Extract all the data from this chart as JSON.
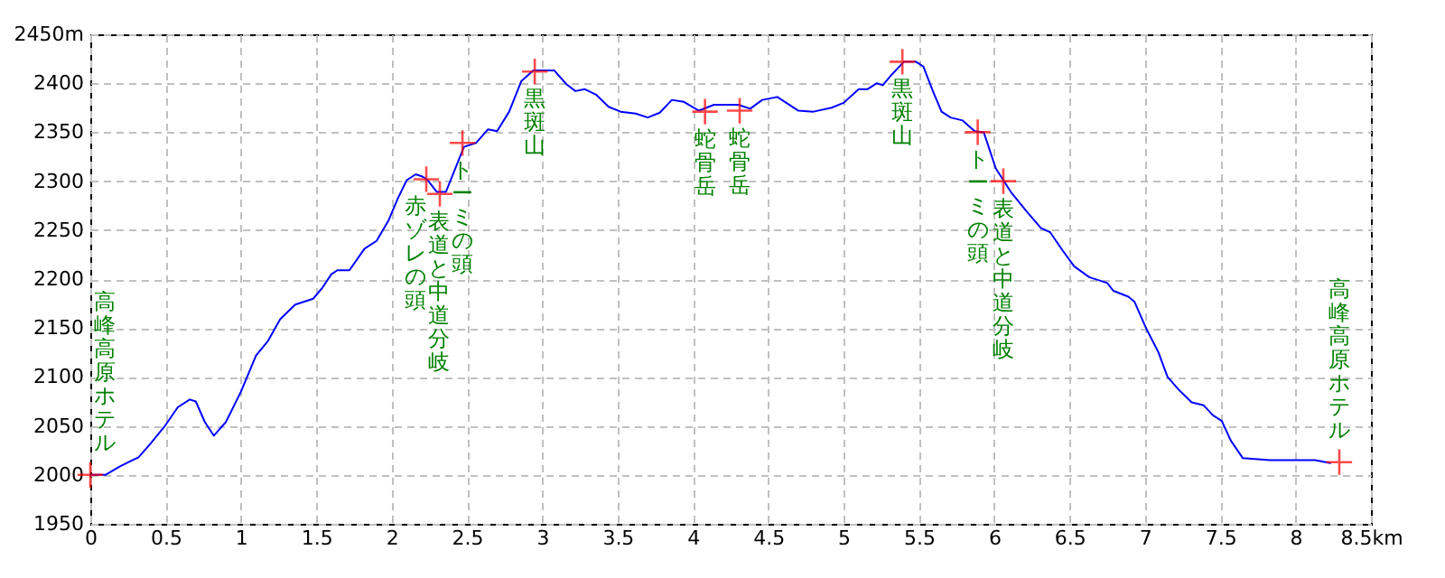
{
  "chart_data": {
    "type": "line",
    "xlim": [
      0,
      8.5
    ],
    "ylim": [
      1950,
      2450
    ],
    "xticks": [
      0,
      0.5,
      1,
      1.5,
      2,
      2.5,
      3,
      3.5,
      4,
      4.5,
      5,
      5.5,
      6,
      6.5,
      7,
      7.5,
      8,
      {
        "value": 8.5,
        "label": "8.5km"
      }
    ],
    "yticks": [
      1950,
      2000,
      2050,
      2100,
      2150,
      2200,
      2250,
      2300,
      2350,
      2400,
      {
        "value": 2450,
        "label": "2450m"
      }
    ],
    "grid": true,
    "series": [
      {
        "color": "#0000ff",
        "x": [
          0,
          0.1,
          0.2,
          0.32,
          0.4,
          0.5,
          0.58,
          0.66,
          0.7,
          0.76,
          0.82,
          0.9,
          1.0,
          1.1,
          1.18,
          1.26,
          1.36,
          1.48,
          1.54,
          1.6,
          1.64,
          1.72,
          1.82,
          1.9,
          1.98,
          2.04,
          2.1,
          2.16,
          2.2,
          2.24,
          2.3,
          2.36,
          2.48,
          2.56,
          2.64,
          2.7,
          2.78,
          2.86,
          2.94,
          3.08,
          3.16,
          3.22,
          3.28,
          3.36,
          3.44,
          3.52,
          3.62,
          3.7,
          3.78,
          3.86,
          3.94,
          4.04,
          4.14,
          4.3,
          4.38,
          4.46,
          4.56,
          4.7,
          4.8,
          4.92,
          5.0,
          5.1,
          5.16,
          5.22,
          5.26,
          5.32,
          5.4,
          5.48,
          5.53,
          5.59,
          5.65,
          5.71,
          5.79,
          5.87,
          5.93,
          6.01,
          6.11,
          6.21,
          6.31,
          6.37,
          6.45,
          6.53,
          6.63,
          6.75,
          6.79,
          6.89,
          6.93,
          7.01,
          7.09,
          7.15,
          7.23,
          7.31,
          7.39,
          7.45,
          7.51,
          7.57,
          7.65,
          7.83,
          8.13,
          8.23
        ],
        "values": [
          2000,
          2000,
          2009,
          2018,
          2032,
          2051,
          2069,
          2077,
          2075,
          2054,
          2040,
          2054,
          2085,
          2122,
          2137,
          2159,
          2174,
          2180,
          2191,
          2205,
          2209,
          2209,
          2231,
          2239,
          2260,
          2282,
          2301,
          2307,
          2305,
          2301,
          2289,
          2289,
          2335,
          2339,
          2353,
          2351,
          2371,
          2402,
          2413,
          2413,
          2399,
          2392,
          2394,
          2388,
          2376,
          2371,
          2369,
          2365,
          2370,
          2383,
          2381,
          2372,
          2378,
          2378,
          2374,
          2383,
          2386,
          2372,
          2371,
          2375,
          2380,
          2394,
          2394,
          2400,
          2398,
          2409,
          2422,
          2422,
          2417,
          2393,
          2371,
          2365,
          2362,
          2351,
          2350,
          2313,
          2289,
          2270,
          2252,
          2248,
          2230,
          2213,
          2202,
          2196,
          2188,
          2182,
          2177,
          2149,
          2125,
          2100,
          2086,
          2074,
          2071,
          2061,
          2055,
          2035,
          2017,
          2015,
          2015,
          2012
        ]
      },
      {
        "type": "scatter",
        "color": "#ff0000",
        "marker": "cross",
        "x": [
          0,
          2.23,
          2.32,
          2.47,
          2.95,
          4.08,
          4.31,
          5.39,
          5.89,
          6.06,
          8.29
        ],
        "values": [
          2000,
          2302,
          2287,
          2339,
          2412,
          2371,
          2372,
          2422,
          2350,
          2300,
          2013
        ]
      }
    ],
    "annotations": [
      {
        "text": "高峰高原ホテル",
        "x": 0,
        "y": 2000
      },
      {
        "text": "赤ゾレの頭",
        "x": 2.23,
        "y": 2302
      },
      {
        "text": "表道と中道分岐",
        "x": 2.32,
        "y": 2287
      },
      {
        "text": "トーミの頭",
        "x": 2.47,
        "y": 2339
      },
      {
        "text": "黒斑山",
        "x": 2.95,
        "y": 2412
      },
      {
        "text": "蛇骨岳",
        "x": 4.08,
        "y": 2371
      },
      {
        "text": "蛇骨岳",
        "x": 4.31,
        "y": 2372
      },
      {
        "text": "黒斑山",
        "x": 5.39,
        "y": 2422
      },
      {
        "text": "トーミの頭",
        "x": 5.89,
        "y": 2350
      },
      {
        "text": "表道と中道分岐",
        "x": 6.06,
        "y": 2300
      },
      {
        "text": "高峰高原ホテル",
        "x": 8.29,
        "y": 2013
      }
    ]
  }
}
